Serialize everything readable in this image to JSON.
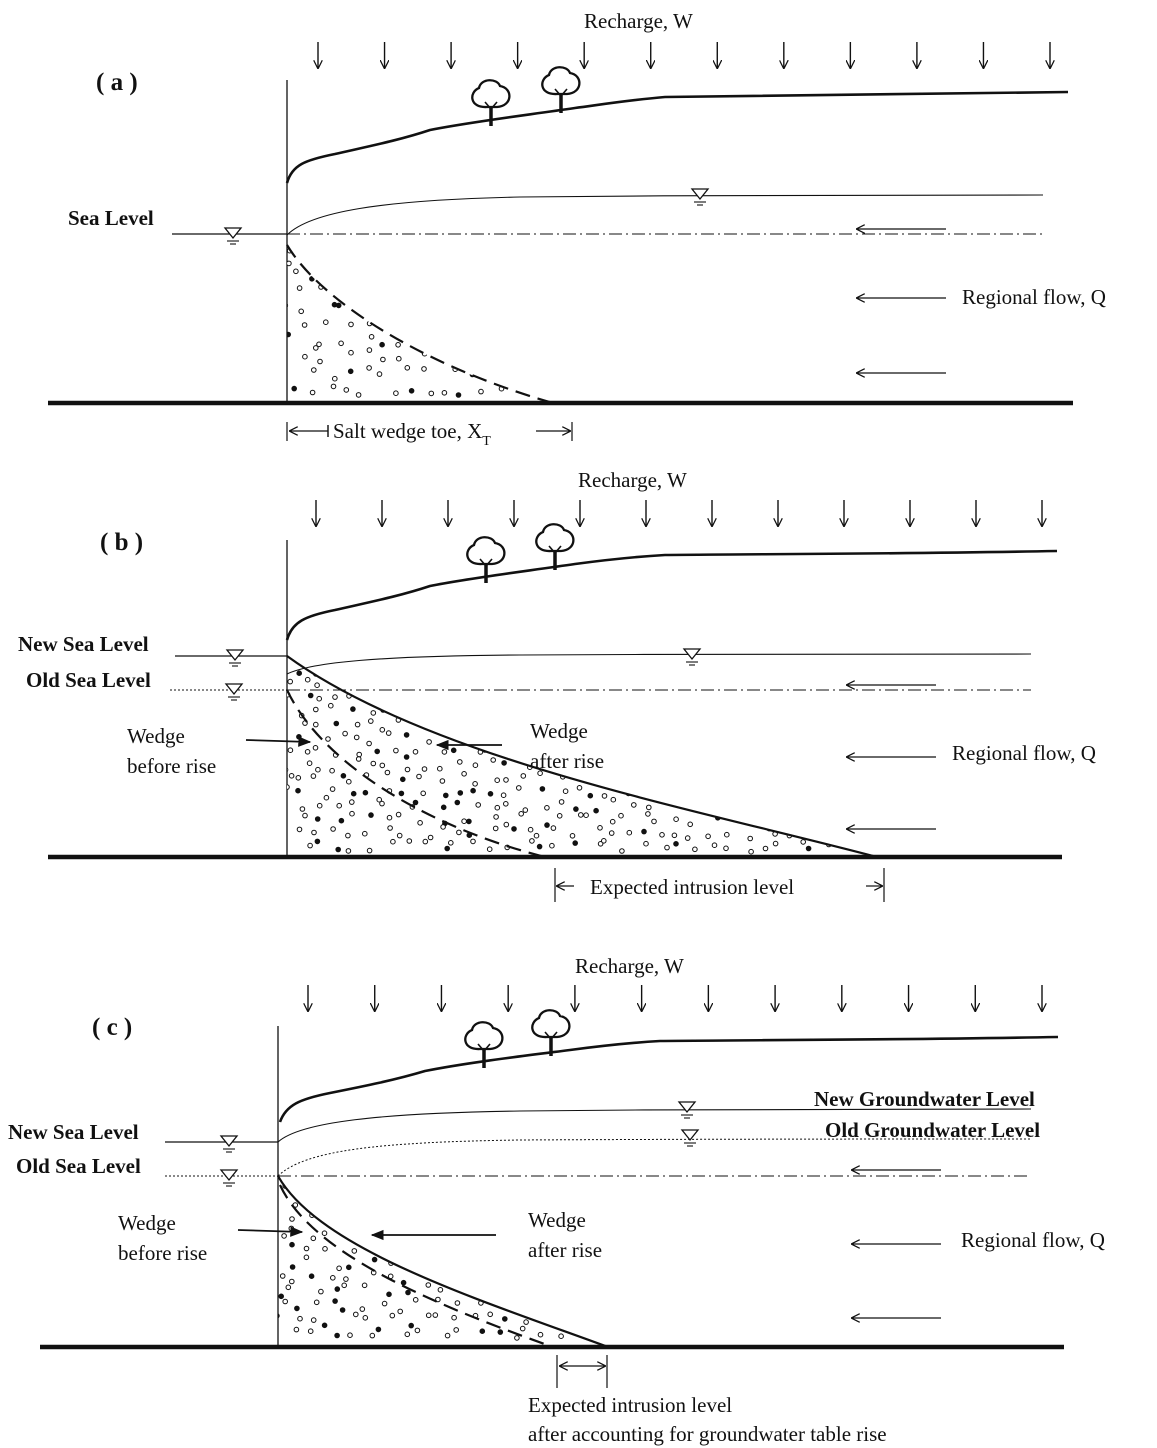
{
  "panels": [
    {
      "label": "( a )",
      "recharge": "Recharge, W",
      "sea_level": "Sea Level",
      "regional_flow": "Regional flow, Q",
      "toe_label": "Salt wedge toe, X",
      "toe_subscript": "T"
    },
    {
      "label": "( b )",
      "recharge": "Recharge, W",
      "new_sea_level": "New Sea Level",
      "old_sea_level": "Old Sea Level",
      "wedge_before_1": "Wedge",
      "wedge_before_2": "before rise",
      "wedge_after_1": "Wedge",
      "wedge_after_2": "after rise",
      "regional_flow": "Regional flow, Q",
      "intrusion": "Expected intrusion level"
    },
    {
      "label": "( c )",
      "recharge": "Recharge, W",
      "new_sea_level": "New Sea Level",
      "old_sea_level": "Old Sea Level",
      "new_gw": "New Groundwater Level",
      "old_gw": "Old Groundwater Level",
      "wedge_before_1": "Wedge",
      "wedge_before_2": "before rise",
      "wedge_after_1": "Wedge",
      "wedge_after_2": "after rise",
      "regional_flow": "Regional flow, Q",
      "intrusion_1": "Expected intrusion level",
      "intrusion_2": "after accounting for groundwater table rise"
    }
  ],
  "icons": [
    "down-arrow-icon",
    "left-arrow-icon",
    "water-level-triangle-icon",
    "tree-icon"
  ],
  "colors": {
    "ink": "#111111",
    "background": "#ffffff"
  }
}
